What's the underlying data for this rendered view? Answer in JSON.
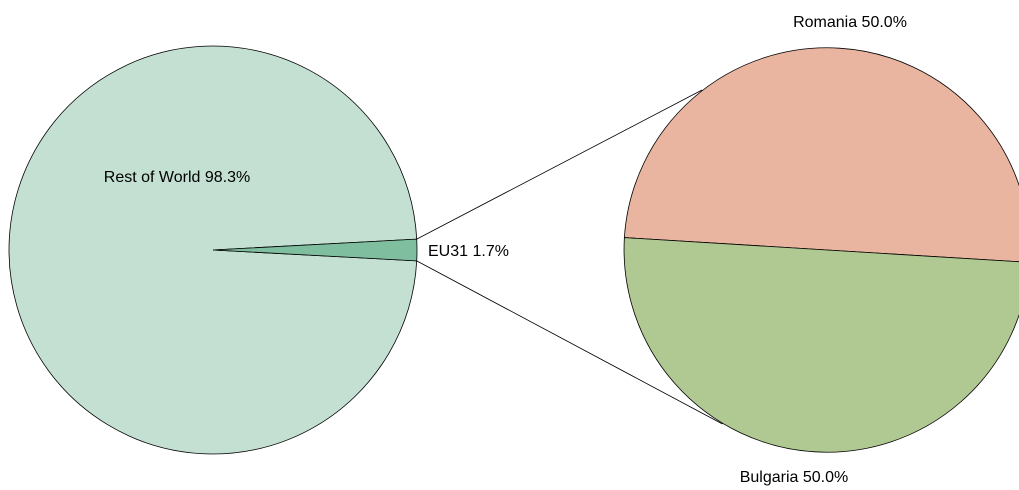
{
  "chart_data": {
    "type": "pie",
    "subtype": "pie-of-pie",
    "main_pie": {
      "slices": [
        {
          "name": "Rest of World",
          "value": 98.3,
          "label": "Rest of World 98.3%",
          "color": "#c3e0d3"
        },
        {
          "name": "EU31",
          "value": 1.7,
          "label": "EU31 1.7%",
          "color": "#7fbf9f"
        }
      ]
    },
    "secondary_pie": {
      "source_slice": "EU31",
      "slices": [
        {
          "name": "Romania",
          "value": 50.0,
          "label": "Romania 50.0%",
          "color": "#e9b5a0"
        },
        {
          "name": "Bulgaria",
          "value": 50.0,
          "label": "Bulgaria 50.0%",
          "color": "#b0c891"
        }
      ]
    },
    "legend": "none",
    "grid": false
  }
}
